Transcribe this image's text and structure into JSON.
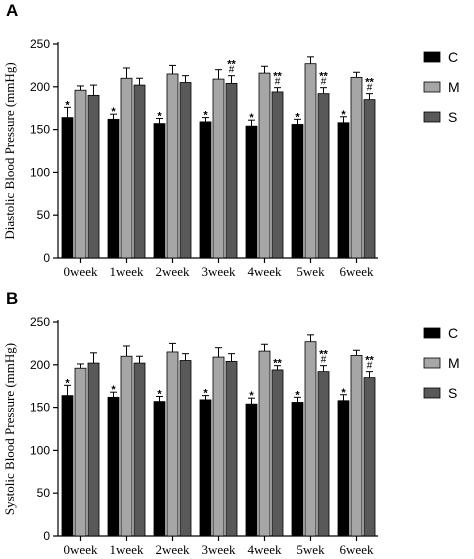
{
  "chart_data": [
    {
      "panel": "A",
      "type": "bar",
      "ylabel": "Diastolic  Blood Pressure (mmHg)",
      "xlabel": "",
      "ylim": [
        0,
        250
      ],
      "yticks": [
        0,
        50,
        100,
        150,
        200,
        250
      ],
      "categories": [
        "0week",
        "1week",
        "2week",
        "3week",
        "4week",
        "5wek",
        "6week"
      ],
      "series": [
        {
          "name": "C",
          "values": [
            164,
            162,
            157,
            159,
            154,
            156,
            158
          ],
          "errors": [
            12,
            6,
            6,
            5,
            7,
            6,
            7
          ],
          "annotations": [
            "*",
            "*",
            "*",
            "*",
            "*",
            "*",
            "*"
          ],
          "color": "#000000"
        },
        {
          "name": "M",
          "values": [
            196,
            210,
            215,
            209,
            216,
            227,
            211
          ],
          "errors": [
            5,
            12,
            10,
            11,
            8,
            8,
            6
          ],
          "annotations": [
            "",
            "",
            "",
            "",
            "",
            "",
            ""
          ],
          "color": "#a6a6a6"
        },
        {
          "name": "S",
          "values": [
            190,
            202,
            205,
            204,
            194,
            192,
            185
          ],
          "errors": [
            12,
            8,
            8,
            9,
            5,
            7,
            7
          ],
          "annotations": [
            "",
            "",
            "",
            "**\n#",
            "**\n#",
            "**\n#",
            "**\n#"
          ],
          "color": "#595959"
        }
      ],
      "legend": "right"
    },
    {
      "panel": "B",
      "type": "bar",
      "ylabel": "Systolic Blood Pressure (mmHg)",
      "xlabel": "",
      "ylim": [
        0,
        250
      ],
      "yticks": [
        0,
        50,
        100,
        150,
        200,
        250
      ],
      "categories": [
        "0week",
        "1week",
        "2week",
        "3week",
        "4week",
        "5wek",
        "6week"
      ],
      "series": [
        {
          "name": "C",
          "values": [
            164,
            162,
            157,
            159,
            154,
            156,
            158
          ],
          "errors": [
            12,
            6,
            6,
            5,
            7,
            6,
            7
          ],
          "annotations": [
            "*",
            "*",
            "*",
            "*",
            "*",
            "*",
            "*"
          ],
          "color": "#000000"
        },
        {
          "name": "M",
          "values": [
            196,
            210,
            215,
            209,
            216,
            227,
            211
          ],
          "errors": [
            5,
            12,
            10,
            11,
            8,
            8,
            6
          ],
          "annotations": [
            "",
            "",
            "",
            "",
            "",
            "",
            ""
          ],
          "color": "#a6a6a6"
        },
        {
          "name": "S",
          "values": [
            202,
            202,
            205,
            204,
            194,
            192,
            185
          ],
          "errors": [
            12,
            8,
            8,
            9,
            5,
            7,
            7
          ],
          "annotations": [
            "",
            "",
            "",
            "",
            "**",
            "**\n#",
            "**\n#"
          ],
          "color": "#595959"
        }
      ],
      "legend": "right"
    }
  ]
}
